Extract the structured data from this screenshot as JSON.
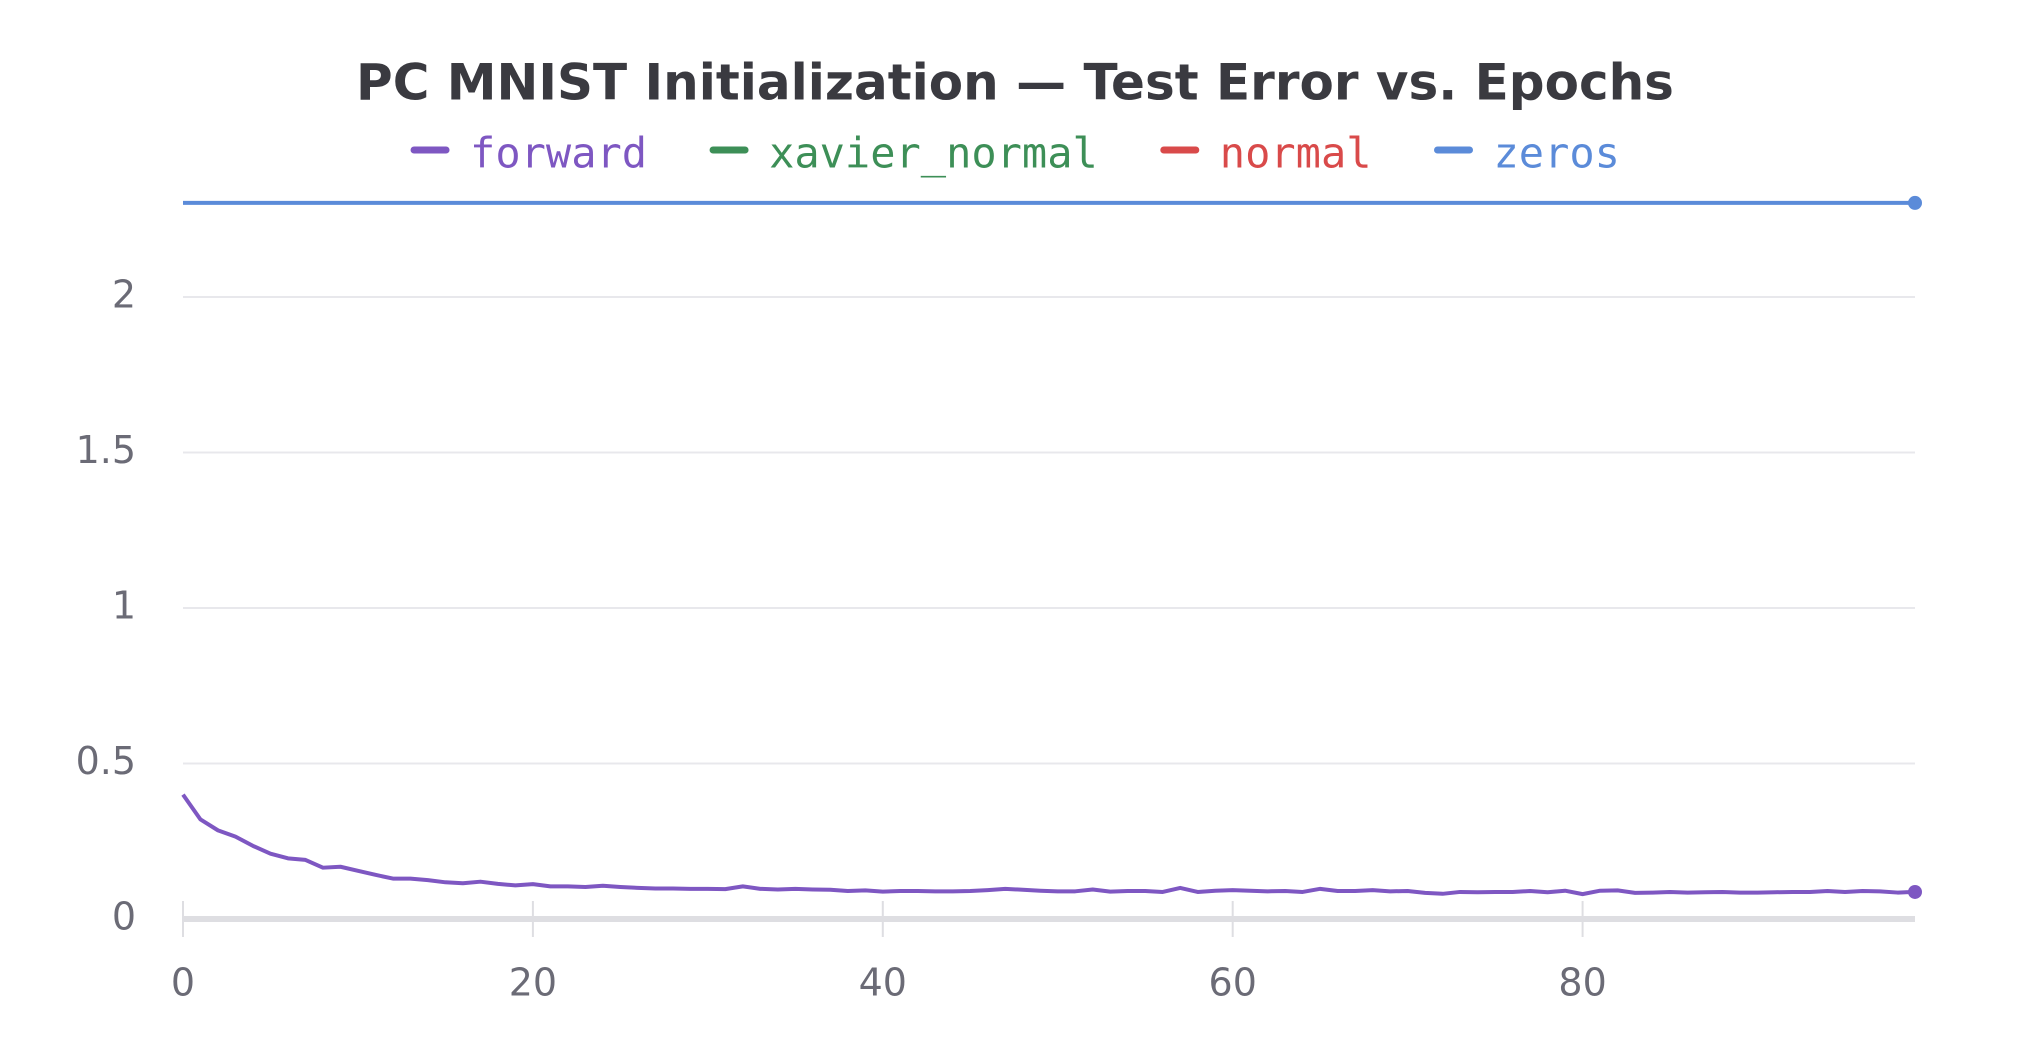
{
  "chart_data": {
    "type": "line",
    "title": "PC MNIST Initialization — Test Error vs. Epochs",
    "x": [
      0,
      1,
      2,
      3,
      4,
      5,
      6,
      7,
      8,
      9,
      10,
      11,
      12,
      13,
      14,
      15,
      16,
      17,
      18,
      19,
      20,
      21,
      22,
      23,
      24,
      25,
      26,
      27,
      28,
      29,
      30,
      31,
      32,
      33,
      34,
      35,
      36,
      37,
      38,
      39,
      40,
      41,
      42,
      43,
      44,
      45,
      46,
      47,
      48,
      49,
      50,
      51,
      52,
      53,
      54,
      55,
      56,
      57,
      58,
      59,
      60,
      61,
      62,
      63,
      64,
      65,
      66,
      67,
      68,
      69,
      70,
      71,
      72,
      73,
      74,
      75,
      76,
      77,
      78,
      79,
      80,
      81,
      82,
      83,
      84,
      85,
      86,
      87,
      88,
      89,
      90,
      91,
      92,
      93,
      94,
      95,
      96,
      97,
      98,
      99
    ],
    "series": [
      {
        "name": "forward",
        "color": "#7e57c2",
        "values": [
          0.4,
          0.32,
          0.285,
          0.265,
          0.235,
          0.21,
          0.195,
          0.19,
          0.165,
          0.168,
          0.155,
          0.142,
          0.13,
          0.13,
          0.125,
          0.118,
          0.115,
          0.12,
          0.113,
          0.108,
          0.112,
          0.105,
          0.105,
          0.103,
          0.107,
          0.103,
          0.1,
          0.098,
          0.098,
          0.097,
          0.097,
          0.096,
          0.105,
          0.097,
          0.095,
          0.097,
          0.095,
          0.094,
          0.09,
          0.092,
          0.088,
          0.09,
          0.09,
          0.089,
          0.089,
          0.09,
          0.093,
          0.097,
          0.094,
          0.091,
          0.089,
          0.089,
          0.095,
          0.088,
          0.09,
          0.09,
          0.087,
          0.1,
          0.087,
          0.091,
          0.093,
          0.091,
          0.089,
          0.09,
          0.087,
          0.097,
          0.09,
          0.09,
          0.093,
          0.089,
          0.09,
          0.084,
          0.081,
          0.087,
          0.086,
          0.087,
          0.087,
          0.09,
          0.086,
          0.091,
          0.08,
          0.091,
          0.092,
          0.084,
          0.085,
          0.087,
          0.085,
          0.086,
          0.087,
          0.085,
          0.085,
          0.086,
          0.087,
          0.087,
          0.09,
          0.087,
          0.09,
          0.089,
          0.085,
          0.087
        ]
      },
      {
        "name": "xavier_normal",
        "color": "#3d8f57",
        "values": [
          null,
          null,
          null,
          null,
          null,
          null,
          null,
          null,
          null,
          null,
          null,
          null,
          null,
          null,
          null,
          null,
          null,
          null,
          null,
          null,
          null,
          null,
          null,
          null,
          null,
          null,
          null,
          null,
          null,
          null,
          null,
          null,
          null,
          null,
          null,
          null,
          null,
          null,
          null,
          null,
          null,
          null,
          null,
          null,
          null,
          null,
          null,
          null,
          null,
          null,
          null,
          null,
          null,
          null,
          null,
          null,
          null,
          null,
          null,
          null,
          null,
          null,
          null,
          null,
          null,
          null,
          null,
          null,
          null,
          null,
          null,
          null,
          null,
          null,
          null,
          null,
          null,
          null,
          null,
          null,
          null,
          null,
          null,
          null,
          null,
          null,
          null,
          null,
          null,
          null,
          null,
          null,
          null,
          null,
          null,
          null,
          null,
          null,
          null,
          null
        ]
      },
      {
        "name": "normal",
        "color": "#d94a4a",
        "values": [
          null,
          null,
          null,
          null,
          null,
          null,
          null,
          null,
          null,
          null,
          null,
          null,
          null,
          null,
          null,
          null,
          null,
          null,
          null,
          null,
          null,
          null,
          null,
          null,
          null,
          null,
          null,
          null,
          null,
          null,
          null,
          null,
          null,
          null,
          null,
          null,
          null,
          null,
          null,
          null,
          null,
          null,
          null,
          null,
          null,
          null,
          null,
          null,
          null,
          null,
          null,
          null,
          null,
          null,
          null,
          null,
          null,
          null,
          null,
          null,
          null,
          null,
          null,
          null,
          null,
          null,
          null,
          null,
          null,
          null,
          null,
          null,
          null,
          null,
          null,
          null,
          null,
          null,
          null,
          null,
          null,
          null,
          null,
          null,
          null,
          null,
          null,
          null,
          null,
          null,
          null,
          null,
          null,
          null,
          null,
          null,
          null,
          null,
          null,
          null
        ]
      },
      {
        "name": "zeros",
        "color": "#5b8bd9",
        "values": [
          2.3026,
          2.3026,
          2.3026,
          2.3026,
          2.3026,
          2.3026,
          2.3026,
          2.3026,
          2.3026,
          2.3026,
          2.3026,
          2.3026,
          2.3026,
          2.3026,
          2.3026,
          2.3026,
          2.3026,
          2.3026,
          2.3026,
          2.3026,
          2.3026,
          2.3026,
          2.3026,
          2.3026,
          2.3026,
          2.3026,
          2.3026,
          2.3026,
          2.3026,
          2.3026,
          2.3026,
          2.3026,
          2.3026,
          2.3026,
          2.3026,
          2.3026,
          2.3026,
          2.3026,
          2.3026,
          2.3026,
          2.3026,
          2.3026,
          2.3026,
          2.3026,
          2.3026,
          2.3026,
          2.3026,
          2.3026,
          2.3026,
          2.3026,
          2.3026,
          2.3026,
          2.3026,
          2.3026,
          2.3026,
          2.3026,
          2.3026,
          2.3026,
          2.3026,
          2.3026,
          2.3026,
          2.3026,
          2.3026,
          2.3026,
          2.3026,
          2.3026,
          2.3026,
          2.3026,
          2.3026,
          2.3026,
          2.3026,
          2.3026,
          2.3026,
          2.3026,
          2.3026,
          2.3026,
          2.3026,
          2.3026,
          2.3026,
          2.3026,
          2.3026,
          2.3026,
          2.3026,
          2.3026,
          2.3026,
          2.3026,
          2.3026,
          2.3026,
          2.3026,
          2.3026,
          2.3026,
          2.3026,
          2.3026,
          2.3026,
          2.3026,
          2.3026,
          2.3026,
          2.3026,
          2.3026,
          2.3026
        ]
      }
    ],
    "xlim": [
      0,
      99
    ],
    "xticks": [
      0,
      20,
      40,
      60,
      80
    ],
    "ylim": [
      0,
      2.31
    ],
    "yticks": [
      0,
      0.5,
      1,
      1.5,
      2
    ],
    "grid": true
  }
}
